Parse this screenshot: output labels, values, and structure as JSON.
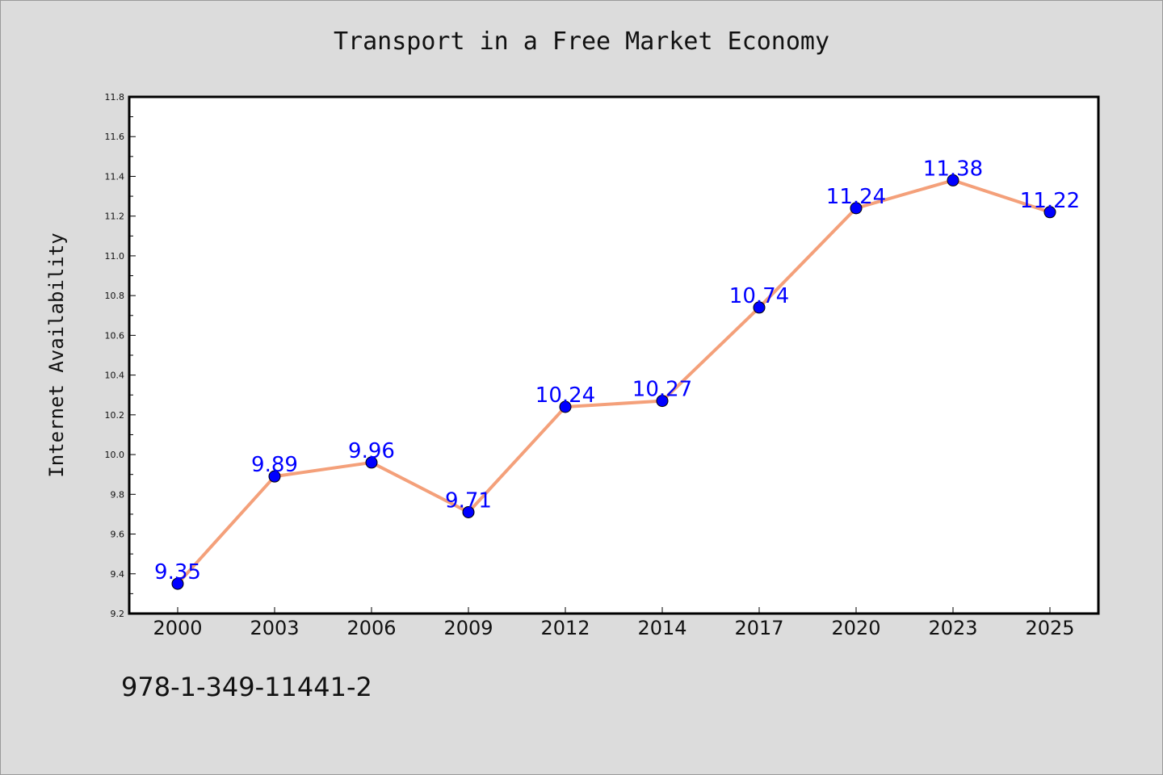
{
  "chart_data": {
    "type": "line",
    "title": "Transport in a Free Market Economy",
    "xlabel": "",
    "ylabel": "Internet Availability",
    "categories": [
      "2000",
      "2003",
      "2006",
      "2009",
      "2012",
      "2014",
      "2017",
      "2020",
      "2023",
      "2025"
    ],
    "values": [
      9.35,
      9.89,
      9.96,
      9.71,
      10.24,
      10.27,
      10.74,
      11.24,
      11.38,
      11.22
    ],
    "data_labels": [
      "9.35",
      "9.89",
      "9.96",
      "9.71",
      "10.24",
      "10.27",
      "10.74",
      "11.24",
      "11.38",
      "11.22"
    ],
    "ylim": [
      9.2,
      11.8
    ],
    "yticks": [
      "9.2",
      "9.4",
      "9.6",
      "9.8",
      "10.0",
      "10.2",
      "10.4",
      "10.6",
      "10.8",
      "11.0",
      "11.2",
      "11.4",
      "11.6",
      "11.8"
    ],
    "grid": false,
    "legend": "none",
    "colors": {
      "line": "#f4a07a",
      "marker": "#0000ff",
      "data_label": "#0000ff",
      "plot_background": "#ffffff",
      "page_background": "#dcdcdc"
    }
  },
  "footer": {
    "code": "978-1-349-11441-2"
  }
}
